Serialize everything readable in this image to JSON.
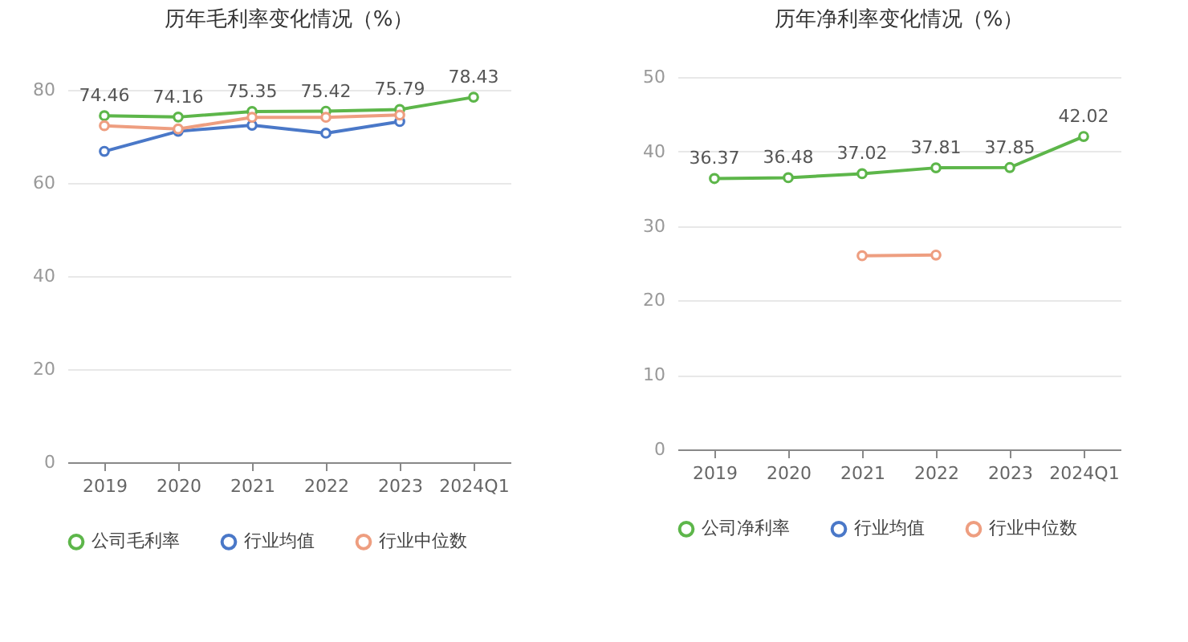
{
  "chart_data": [
    {
      "type": "line",
      "title": "历年毛利率变化情况（%）",
      "categories": [
        "2019",
        "2020",
        "2021",
        "2022",
        "2023",
        "2024Q1"
      ],
      "series": [
        {
          "name": "公司毛利率",
          "color": "#5db64a",
          "values": [
            74.46,
            74.16,
            75.35,
            75.42,
            75.79,
            78.43
          ],
          "value_labels": [
            "74.46",
            "74.16",
            "75.35",
            "75.42",
            "75.79",
            "78.43"
          ]
        },
        {
          "name": "行业均值",
          "color": "#4a78c8",
          "values": [
            66.8,
            71.1,
            72.4,
            70.7,
            73.2,
            null
          ]
        },
        {
          "name": "行业中位数",
          "color": "#ee9e80",
          "values": [
            72.3,
            71.6,
            74.1,
            74.1,
            74.6,
            null
          ]
        }
      ],
      "ylim": [
        0,
        80
      ],
      "yticks": [
        0,
        20,
        40,
        60,
        80
      ],
      "grid": "y",
      "legend": "bottom",
      "marker": "circle",
      "line_style": "solid"
    },
    {
      "type": "line",
      "title": "历年净利率变化情况（%）",
      "categories": [
        "2019",
        "2020",
        "2021",
        "2022",
        "2023",
        "2024Q1"
      ],
      "series": [
        {
          "name": "公司净利率",
          "color": "#5db64a",
          "values": [
            36.37,
            36.48,
            37.02,
            37.81,
            37.85,
            42.02
          ],
          "value_labels": [
            "36.37",
            "36.48",
            "37.02",
            "37.81",
            "37.85",
            "42.02"
          ]
        },
        {
          "name": "行业均值",
          "color": "#4a78c8",
          "values": [
            null,
            null,
            null,
            null,
            null,
            null
          ]
        },
        {
          "name": "行业中位数",
          "color": "#ee9e80",
          "values": [
            null,
            null,
            26.0,
            26.1,
            null,
            null
          ]
        }
      ],
      "ylim": [
        0,
        50
      ],
      "yticks": [
        0,
        10,
        20,
        30,
        40,
        50
      ],
      "grid": "y",
      "legend": "bottom",
      "marker": "circle",
      "line_style": "solid"
    }
  ]
}
